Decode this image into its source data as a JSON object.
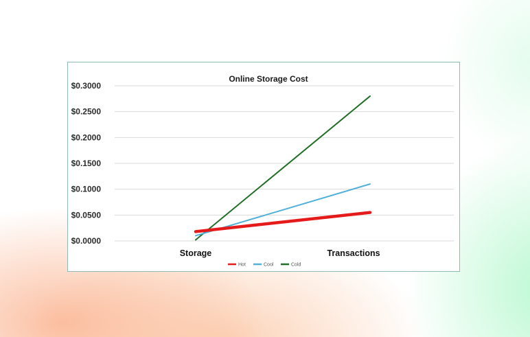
{
  "chart_data": {
    "type": "line",
    "title": "Online Storage Cost",
    "xlabel": "",
    "ylabel": "",
    "categories": [
      "Storage",
      "Transactions"
    ],
    "ylim": [
      0,
      0.3
    ],
    "yticks": [
      "$0.0000",
      "$0.0500",
      "$0.1000",
      "$0.1500",
      "$0.2000",
      "$0.2500",
      "$0.3000"
    ],
    "ytick_values": [
      0,
      0.05,
      0.1,
      0.15,
      0.2,
      0.25,
      0.3
    ],
    "grid": true,
    "legend_position": "bottom",
    "series": [
      {
        "name": "Hot",
        "values": [
          0.018,
          0.055
        ],
        "color": "#e51b1b"
      },
      {
        "name": "Cool",
        "values": [
          0.01,
          0.11
        ],
        "color": "#4fb0d8"
      },
      {
        "name": "Cold",
        "values": [
          0.002,
          0.28
        ],
        "color": "#1f6e23"
      }
    ]
  }
}
